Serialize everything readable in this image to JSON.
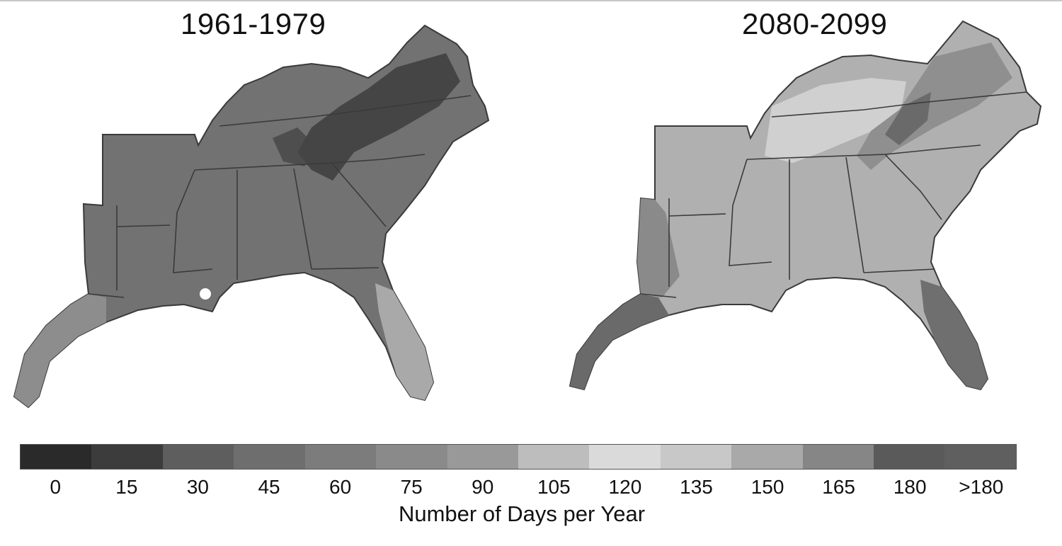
{
  "maps": {
    "left_title": "1961-1979",
    "right_title": "2080-2099"
  },
  "legend": {
    "title": "Number of Days per Year",
    "labels": [
      "0",
      "15",
      "30",
      "45",
      "60",
      "75",
      "90",
      "105",
      "120",
      "135",
      "150",
      "165",
      "180",
      ">180"
    ],
    "colors": [
      "#2a2a2a",
      "#3c3c3c",
      "#5e5e5e",
      "#6e6e6e",
      "#7c7c7c",
      "#8a8a8a",
      "#999999",
      "#bdbdbd",
      "#dadada",
      "#c8c8c8",
      "#a9a9a9",
      "#868686",
      "#5a5a5a",
      "#5f5f5f"
    ]
  }
}
